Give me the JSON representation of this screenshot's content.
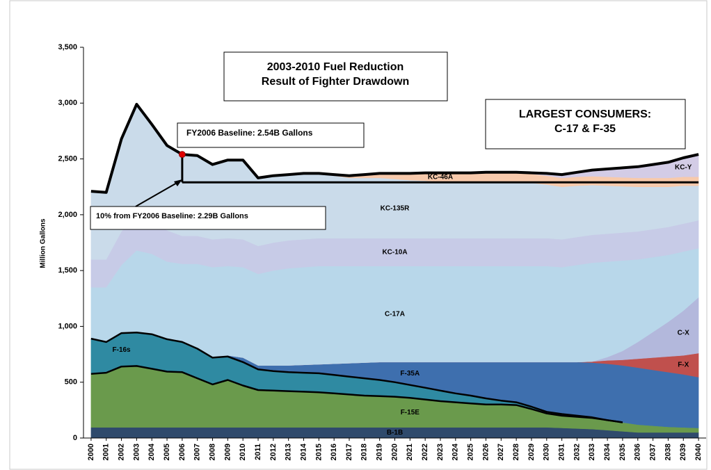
{
  "chart_data": {
    "type": "stacked_area",
    "annotations": {
      "title_box": [
        "2003-2010 Fuel Reduction",
        "Result of Fighter Drawdown"
      ],
      "consumers_box": [
        "LARGEST CONSUMERS:",
        "C-17 & F-35"
      ],
      "baseline_box": "FY2006 Baseline:  2.54B Gallons",
      "reduction_box": "10% from FY2006 Baseline:  2.29B Gallons"
    },
    "ylabel": "Million Gallons",
    "x": [
      2000,
      2001,
      2002,
      2003,
      2004,
      2005,
      2006,
      2007,
      2008,
      2009,
      2010,
      2011,
      2012,
      2013,
      2014,
      2015,
      2016,
      2017,
      2018,
      2019,
      2020,
      2021,
      2022,
      2023,
      2024,
      2025,
      2026,
      2027,
      2028,
      2029,
      2030,
      2031,
      2032,
      2033,
      2034,
      2035,
      2036,
      2037,
      2038,
      2039,
      2040
    ],
    "xlim": [
      1999.5,
      2040.5
    ],
    "ylim": [
      0,
      3500
    ],
    "yticks": [
      0,
      500,
      {
        "value": 1000,
        "label": "1,000"
      },
      {
        "value": 1500,
        "label": "1,500"
      },
      {
        "value": 2000,
        "label": "2,000"
      },
      {
        "value": 2500,
        "label": "2,500"
      },
      {
        "value": 3000,
        "label": "3,000"
      },
      {
        "value": 3500,
        "label": "3,500"
      }
    ],
    "series": [
      {
        "name": "B-1B",
        "color": "#2f4a6c",
        "values": [
          95,
          95,
          95,
          95,
          95,
          95,
          95,
          95,
          95,
          95,
          95,
          95,
          95,
          95,
          95,
          95,
          95,
          95,
          95,
          95,
          95,
          95,
          95,
          95,
          95,
          95,
          95,
          95,
          95,
          95,
          95,
          90,
          85,
          80,
          70,
          60,
          50,
          50,
          50,
          50,
          50
        ]
      },
      {
        "name": "F-15E",
        "color": "#6a9a4c",
        "values": [
          480,
          490,
          545,
          550,
          525,
          500,
          495,
          440,
          385,
          425,
          375,
          335,
          330,
          325,
          320,
          315,
          305,
          295,
          285,
          280,
          275,
          265,
          250,
          235,
          225,
          215,
          205,
          205,
          200,
          165,
          125,
          110,
          105,
          100,
          90,
          80,
          70,
          60,
          50,
          45,
          40
        ]
      },
      {
        "name": "F-16s",
        "color": "#2f8aa2",
        "values": [
          315,
          275,
          300,
          300,
          310,
          290,
          270,
          265,
          240,
          210,
          210,
          185,
          175,
          170,
          170,
          170,
          165,
          160,
          155,
          145,
          130,
          115,
          105,
          95,
          80,
          70,
          55,
          35,
          25,
          20,
          15,
          15,
          10,
          5,
          0,
          0,
          0,
          0,
          0,
          0,
          0
        ]
      },
      {
        "name": "F-35A",
        "color": "#3e6fae",
        "values": [
          0,
          0,
          0,
          0,
          0,
          0,
          0,
          0,
          0,
          10,
          40,
          35,
          50,
          60,
          70,
          80,
          100,
          120,
          140,
          160,
          180,
          205,
          230,
          255,
          280,
          300,
          325,
          345,
          360,
          400,
          445,
          465,
          480,
          490,
          505,
          510,
          510,
          500,
          490,
          475,
          455
        ]
      },
      {
        "name": "F-X",
        "color": "#c0504d",
        "values": [
          0,
          0,
          0,
          0,
          0,
          0,
          0,
          0,
          0,
          0,
          0,
          0,
          0,
          0,
          0,
          0,
          0,
          0,
          0,
          0,
          0,
          0,
          0,
          0,
          0,
          0,
          0,
          0,
          0,
          0,
          0,
          0,
          0,
          10,
          30,
          50,
          80,
          110,
          140,
          170,
          215
        ]
      },
      {
        "name": "C-X",
        "color": "#b3b8dc",
        "values": [
          0,
          0,
          0,
          0,
          0,
          0,
          0,
          0,
          0,
          0,
          0,
          0,
          0,
          0,
          0,
          0,
          0,
          0,
          0,
          0,
          0,
          0,
          0,
          0,
          0,
          0,
          0,
          0,
          0,
          0,
          0,
          0,
          0,
          0,
          30,
          80,
          150,
          230,
          310,
          400,
          500
        ]
      },
      {
        "name": "C-17A",
        "color": "#b8d7ea",
        "values": [
          460,
          490,
          610,
          735,
          720,
          695,
          700,
          760,
          810,
          800,
          810,
          820,
          850,
          870,
          875,
          880,
          875,
          870,
          865,
          860,
          860,
          860,
          860,
          860,
          860,
          860,
          860,
          860,
          860,
          860,
          860,
          850,
          870,
          885,
          855,
          810,
          740,
          670,
          600,
          530,
          440
        ]
      },
      {
        "name": "KC-10A",
        "color": "#c7cbe7",
        "values": [
          250,
          250,
          300,
          320,
          300,
          280,
          250,
          250,
          250,
          250,
          250,
          250,
          250,
          250,
          250,
          250,
          250,
          250,
          250,
          250,
          250,
          250,
          250,
          250,
          250,
          250,
          250,
          250,
          250,
          250,
          250,
          250,
          250,
          250,
          250,
          250,
          250,
          250,
          250,
          250,
          250
        ]
      },
      {
        "name": "KC-135R",
        "color": "#cadbea",
        "values": [
          610,
          600,
          830,
          990,
          860,
          760,
          730,
          720,
          670,
          700,
          710,
          610,
          600,
          590,
          590,
          580,
          560,
          540,
          540,
          540,
          530,
          520,
          515,
          505,
          505,
          505,
          510,
          510,
          510,
          495,
          480,
          470,
          460,
          445,
          430,
          415,
          400,
          380,
          360,
          340,
          310
        ]
      },
      {
        "name": "KC-46A",
        "color": "#f7c9ab",
        "values": [
          0,
          0,
          0,
          0,
          0,
          0,
          0,
          0,
          0,
          0,
          0,
          0,
          0,
          0,
          0,
          0,
          10,
          20,
          30,
          40,
          50,
          60,
          70,
          80,
          80,
          80,
          80,
          80,
          80,
          80,
          80,
          80,
          80,
          80,
          80,
          80,
          80,
          80,
          80,
          80,
          80
        ]
      },
      {
        "name": "KC-Y",
        "color": "#d3cce6",
        "values": [
          0,
          0,
          0,
          0,
          0,
          0,
          0,
          0,
          0,
          0,
          0,
          0,
          0,
          0,
          0,
          0,
          0,
          0,
          0,
          0,
          0,
          0,
          0,
          0,
          0,
          0,
          0,
          0,
          0,
          10,
          20,
          30,
          40,
          55,
          70,
          85,
          100,
          120,
          140,
          170,
          200
        ]
      }
    ],
    "lines": [
      {
        "color": "#000000",
        "values": [
          2210,
          2200,
          2680,
          2990,
          2810,
          2620,
          2540,
          2530,
          2450,
          2490,
          2490,
          2330,
          2350,
          2360,
          2370,
          2370,
          2360,
          2350,
          2360,
          2370,
          2370,
          2370,
          2375,
          2375,
          2375,
          2375,
          2380,
          2380,
          2380,
          2375,
          2370,
          2360,
          2380,
          2400,
          2410,
          2420,
          2430,
          2450,
          2470,
          2510,
          2540
        ]
      },
      {
        "color": "#000000",
        "values": [
          null,
          null,
          null,
          null,
          null,
          null,
          2290,
          2290,
          2290,
          2290,
          2290,
          2290,
          2290,
          2290,
          2290,
          2290,
          2290,
          2290,
          2290,
          2290,
          2290,
          2290,
          2290,
          2290,
          2290,
          2290,
          2290,
          2290,
          2290,
          2290,
          2290,
          2290,
          2290,
          2290,
          2290,
          2290,
          2290,
          2290,
          2290,
          2290,
          2290
        ]
      },
      {
        "color": "#000000",
        "values": [
          890,
          860,
          940,
          945,
          930,
          885,
          860,
          800,
          720,
          730,
          680,
          615,
          600,
          590,
          585,
          580,
          565,
          550,
          535,
          520,
          500,
          475,
          450,
          425,
          400,
          380,
          355,
          335,
          320,
          280,
          235,
          215,
          200,
          185,
          160,
          140,
          null,
          null,
          null,
          null,
          null
        ]
      },
      {
        "color": "#000000",
        "values": [
          575,
          585,
          640,
          645,
          620,
          595,
          590,
          535,
          480,
          520,
          470,
          430,
          425,
          420,
          415,
          410,
          400,
          390,
          380,
          375,
          370,
          360,
          345,
          330,
          320,
          310,
          300,
          300,
          295,
          260,
          220,
          200,
          190,
          180,
          160,
          140,
          null,
          null,
          null,
          null,
          null
        ]
      }
    ],
    "highlight": {
      "x": 2006,
      "y": 2540,
      "color": "#e00000"
    }
  }
}
